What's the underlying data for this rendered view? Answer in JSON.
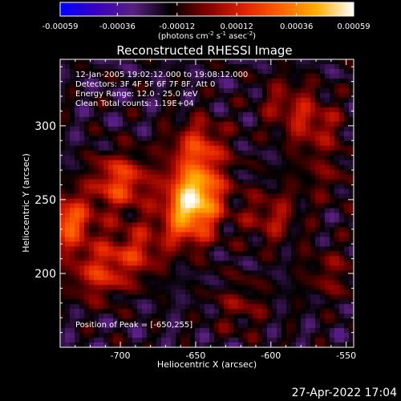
{
  "colorbar": {
    "tick_labels": [
      "-0.00059",
      "-0.00036",
      "-0.00012",
      "0.00012",
      "0.00036",
      "0.00059"
    ],
    "ticks": [
      -0.00059,
      -0.00036,
      -0.00012,
      0.00012,
      0.00036,
      0.00059
    ],
    "range": [
      -0.00059,
      0.00059
    ],
    "units_main": "(photons cm",
    "units_exp1": "-2",
    "units_mid1": " s",
    "units_exp2": "-1",
    "units_mid2": " asec",
    "units_exp3": "-2",
    "units_end": ")",
    "colors": [
      "#0000ff",
      "#3a00c0",
      "#5a2080",
      "#000000",
      "#800000",
      "#e02000",
      "#ff6000",
      "#ffb000",
      "#ffffff"
    ]
  },
  "image": {
    "title": "Reconstructed RHESSI Image",
    "info_lines": [
      "12-Jan-2005 19:02:12.000 to 19:08:12.000",
      "Detectors: 3F 4F 5F 6F 7F 8F, Att 0",
      "Energy Range: 12.0 - 25.0 keV",
      "Clean     Total counts: 1.19E+04"
    ],
    "peak_label": "Position of Peak = [-650,255]",
    "timestamp": "27-Apr-2022 17:04"
  },
  "chart_data": {
    "type": "heatmap",
    "title": "Reconstructed RHESSI Image",
    "xlabel": "Heliocentric X (arcsec)",
    "ylabel": "Heliocentric Y (arcsec)",
    "xlim": [
      -740,
      -545
    ],
    "ylim": [
      150,
      345
    ],
    "x_ticks": [
      -700,
      -650,
      -600,
      -550
    ],
    "x_tick_labels": [
      "-700",
      "-650",
      "-600",
      "-550"
    ],
    "y_ticks": [
      200,
      250,
      300
    ],
    "y_tick_labels": [
      "200",
      "250",
      "300"
    ],
    "peak_position": [
      -650,
      255
    ],
    "zrange": [
      -0.00059,
      0.00059
    ],
    "sources": [
      {
        "x": -650,
        "y": 255,
        "intensity": 0.00059
      },
      {
        "x": -655,
        "y": 235,
        "intensity": 0.0004
      },
      {
        "x": -648,
        "y": 285,
        "intensity": 0.00035
      },
      {
        "x": -736,
        "y": 235,
        "intensity": 0.00045
      },
      {
        "x": -700,
        "y": 262,
        "intensity": 0.0004
      },
      {
        "x": -715,
        "y": 200,
        "intensity": 0.0003
      },
      {
        "x": -690,
        "y": 215,
        "intensity": 0.00028
      },
      {
        "x": -600,
        "y": 238,
        "intensity": 0.00022
      },
      {
        "x": -570,
        "y": 300,
        "intensity": 0.00022
      },
      {
        "x": -590,
        "y": 315,
        "intensity": 0.00018
      },
      {
        "x": -560,
        "y": 200,
        "intensity": 0.00015
      },
      {
        "x": -620,
        "y": 178,
        "intensity": 0.00015
      },
      {
        "x": -565,
        "y": 265,
        "intensity": 0.00012
      }
    ]
  }
}
